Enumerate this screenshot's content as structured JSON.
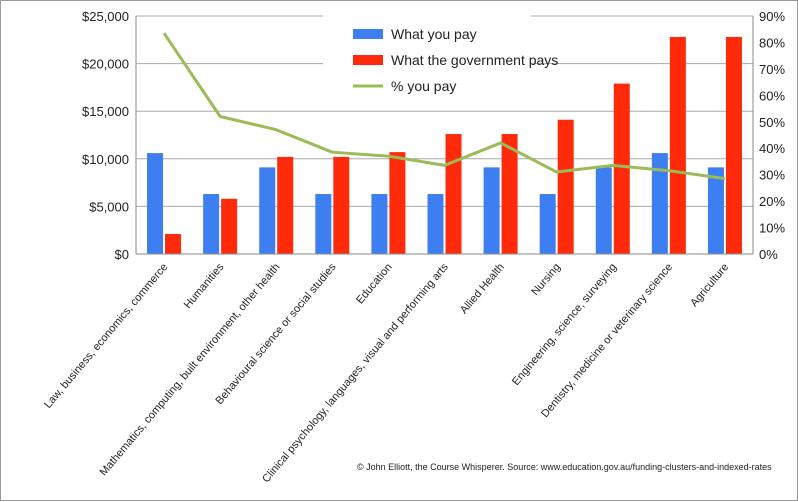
{
  "chart_data": {
    "type": "bar",
    "categories": [
      "Law, business, economics, commerce",
      "Humanities",
      "Mathematics, computing, built environment, other health",
      "Behavioural science or social studies",
      "Education",
      "Clinical psychology, languages, visual and performing arts",
      "Allied Health",
      "Nursing",
      "Engineering, science, surveying",
      "Dentistry, medicine or veterinary science",
      "Agriculture"
    ],
    "series": [
      {
        "name": "What you pay",
        "type": "bar",
        "axis": "left",
        "color": "#3d7ff0",
        "values": [
          10600,
          6300,
          9100,
          6300,
          6300,
          6300,
          9100,
          6300,
          9100,
          10600,
          9100
        ]
      },
      {
        "name": "What the government pays",
        "type": "bar",
        "axis": "left",
        "color": "#ff2a0a",
        "values": [
          2100,
          5800,
          10200,
          10200,
          10700,
          12600,
          12600,
          14100,
          17900,
          22800,
          22800
        ]
      },
      {
        "name": "% you pay",
        "type": "line",
        "axis": "right",
        "color": "#9bbb59",
        "values": [
          83.5,
          52,
          47,
          38.5,
          37,
          33.5,
          42,
          31,
          33.5,
          31.5,
          28.5
        ]
      }
    ],
    "y_left": {
      "ylim": [
        0,
        25000
      ],
      "ticks": [
        "$0",
        "$5,000",
        "$10,000",
        "$15,000",
        "$20,000",
        "$25,000"
      ]
    },
    "y_right": {
      "ylim": [
        0,
        90
      ],
      "ticks": [
        "0%",
        "10%",
        "20%",
        "30%",
        "40%",
        "50%",
        "60%",
        "70%",
        "80%",
        "90%"
      ]
    },
    "grid": "horizontal",
    "legend": "top-center"
  },
  "credit": "© John Elliott, the Course Whisperer.  Source: www.education.gov.au/funding-clusters-and-indexed-rates"
}
